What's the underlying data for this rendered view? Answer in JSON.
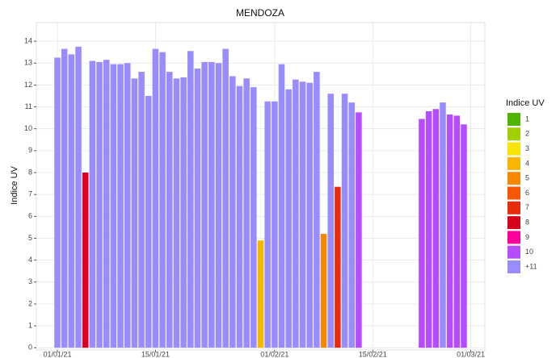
{
  "chart_data": {
    "type": "bar",
    "title": "MENDOZA",
    "y_label": "Indice UV",
    "x": [
      "2021-01-01",
      "2021-01-02",
      "2021-01-03",
      "2021-01-04",
      "2021-01-05",
      "2021-01-06",
      "2021-01-07",
      "2021-01-08",
      "2021-01-09",
      "2021-01-10",
      "2021-01-11",
      "2021-01-12",
      "2021-01-13",
      "2021-01-14",
      "2021-01-15",
      "2021-01-16",
      "2021-01-17",
      "2021-01-18",
      "2021-01-19",
      "2021-01-20",
      "2021-01-21",
      "2021-01-22",
      "2021-01-23",
      "2021-01-24",
      "2021-01-25",
      "2021-01-26",
      "2021-01-27",
      "2021-01-28",
      "2021-01-29",
      "2021-01-30",
      "2021-01-31",
      "2021-02-01",
      "2021-02-02",
      "2021-02-03",
      "2021-02-04",
      "2021-02-05",
      "2021-02-06",
      "2021-02-07",
      "2021-02-08",
      "2021-02-09",
      "2021-02-10",
      "2021-02-11",
      "2021-02-12",
      "2021-02-13",
      "2021-02-14",
      "2021-02-15",
      "2021-02-16",
      "2021-02-17",
      "2021-02-18",
      "2021-02-19",
      "2021-02-20",
      "2021-02-21",
      "2021-02-22",
      "2021-02-23",
      "2021-02-24",
      "2021-02-25",
      "2021-02-26",
      "2021-02-27",
      "2021-02-28"
    ],
    "values": [
      13.25,
      13.65,
      13.4,
      13.75,
      8.0,
      13.1,
      13.05,
      13.15,
      12.95,
      12.95,
      13.0,
      12.3,
      12.6,
      11.5,
      13.65,
      13.5,
      12.6,
      12.3,
      12.35,
      13.55,
      12.75,
      13.05,
      13.05,
      13.0,
      13.65,
      12.4,
      11.95,
      12.3,
      11.9,
      4.9,
      11.25,
      11.25,
      12.95,
      11.8,
      12.25,
      12.15,
      12.1,
      12.6,
      5.2,
      11.6,
      7.35,
      11.6,
      11.2,
      10.75,
      null,
      null,
      null,
      null,
      null,
      null,
      null,
      null,
      10.45,
      10.8,
      10.9,
      11.2,
      10.65,
      10.6,
      10.2
    ],
    "colors": [
      "#998cff",
      "#998cff",
      "#998cff",
      "#998cff",
      "#d8001d",
      "#998cff",
      "#998cff",
      "#998cff",
      "#998cff",
      "#998cff",
      "#998cff",
      "#998cff",
      "#998cff",
      "#998cff",
      "#998cff",
      "#998cff",
      "#998cff",
      "#998cff",
      "#998cff",
      "#998cff",
      "#998cff",
      "#998cff",
      "#998cff",
      "#998cff",
      "#998cff",
      "#998cff",
      "#998cff",
      "#998cff",
      "#998cff",
      "#f8b600",
      "#998cff",
      "#998cff",
      "#998cff",
      "#998cff",
      "#998cff",
      "#998cff",
      "#998cff",
      "#998cff",
      "#f88700",
      "#998cff",
      "#e82c0e",
      "#998cff",
      "#998cff",
      "#b54cff",
      null,
      null,
      null,
      null,
      null,
      null,
      null,
      null,
      "#b54cff",
      "#b54cff",
      "#b54cff",
      "#998cff",
      "#b54cff",
      "#b54cff",
      "#b54cff"
    ],
    "xlim": [
      "2020-12-29",
      "2021-03-03"
    ],
    "xticks": [
      {
        "value": "2021-01-01",
        "label": "01/01/21"
      },
      {
        "value": "2021-01-15",
        "label": "15/01/21"
      },
      {
        "value": "2021-02-01",
        "label": "01/02/21"
      },
      {
        "value": "2021-02-15",
        "label": "15/02/21"
      },
      {
        "value": "2021-03-01",
        "label": "01/03/21"
      }
    ],
    "ylim": [
      -0.1,
      14.85
    ],
    "yticks": [
      0,
      1,
      2,
      3,
      4,
      5,
      6,
      7,
      8,
      9,
      10,
      11,
      12,
      13,
      14
    ],
    "grid": true,
    "legend": {
      "title": "Indice UV",
      "position": "right",
      "items": [
        {
          "label": "1",
          "color": "#4eb400"
        },
        {
          "label": "2",
          "color": "#a0ce00"
        },
        {
          "label": "3",
          "color": "#f7e400"
        },
        {
          "label": "4",
          "color": "#f8b600"
        },
        {
          "label": "5",
          "color": "#f88700"
        },
        {
          "label": "6",
          "color": "#f85900"
        },
        {
          "label": "7",
          "color": "#e82c0e"
        },
        {
          "label": "8",
          "color": "#d8001d"
        },
        {
          "label": "9",
          "color": "#ff0099"
        },
        {
          "label": "10",
          "color": "#b54cff"
        },
        {
          "label": "+11",
          "color": "#998cff"
        }
      ]
    }
  }
}
